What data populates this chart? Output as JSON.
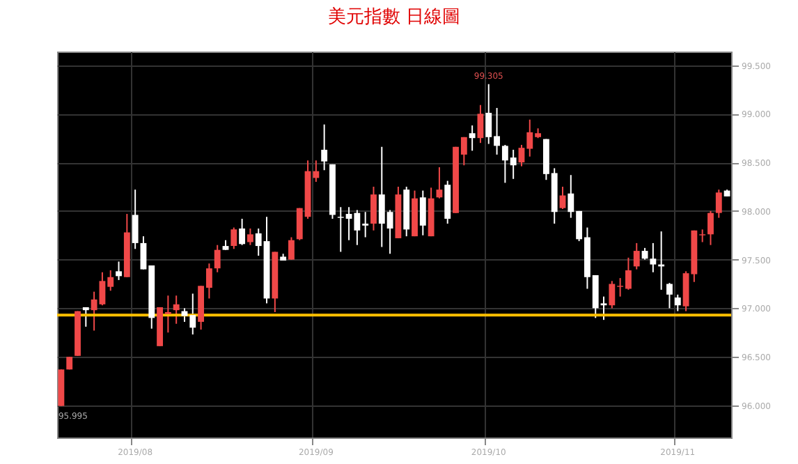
{
  "chart_data": {
    "type": "candlestick",
    "title": "美元指數 日線圖",
    "categories": [
      null,
      null,
      null,
      null,
      null,
      null,
      null,
      null,
      null,
      "2019/08",
      null,
      null,
      null,
      null,
      null,
      null,
      null,
      null,
      null,
      null,
      null,
      null,
      null,
      null,
      null,
      null,
      null,
      null,
      null,
      null,
      null,
      "2019/09",
      null,
      null,
      null,
      null,
      null,
      null,
      null,
      null,
      null,
      null,
      null,
      null,
      null,
      null,
      null,
      null,
      null,
      null,
      null,
      null,
      "2019/10",
      null,
      null,
      null,
      null,
      null,
      null,
      null,
      null,
      null,
      null,
      null,
      null,
      null,
      null,
      null,
      null,
      null,
      null,
      null,
      null,
      null,
      null,
      "2019/11",
      null,
      null,
      null,
      null,
      null,
      null
    ],
    "ohlc": [
      [
        95.995,
        96.37,
        95.995,
        96.37
      ],
      [
        96.37,
        96.5,
        96.37,
        96.5
      ],
      [
        96.51,
        96.97,
        96.51,
        96.97
      ],
      [
        97.01,
        97.01,
        96.81,
        96.98
      ],
      [
        96.98,
        97.17,
        96.77,
        97.09
      ],
      [
        97.04,
        97.37,
        97.03,
        97.28
      ],
      [
        97.22,
        97.39,
        97.18,
        97.32
      ],
      [
        97.38,
        97.48,
        97.29,
        97.33
      ],
      [
        97.32,
        97.97,
        97.32,
        97.78
      ],
      [
        97.96,
        98.22,
        97.61,
        97.67
      ],
      [
        97.67,
        97.74,
        97.4,
        97.4
      ],
      [
        97.44,
        97.44,
        96.79,
        96.9
      ],
      [
        96.61,
        97.01,
        96.61,
        97.01
      ],
      [
        96.94,
        97.13,
        96.75,
        96.96
      ],
      [
        96.98,
        97.13,
        96.84,
        97.04
      ],
      [
        96.97,
        97.0,
        96.86,
        96.92
      ],
      [
        96.93,
        97.15,
        96.73,
        96.8
      ],
      [
        96.86,
        97.23,
        96.78,
        97.23
      ],
      [
        97.21,
        97.46,
        97.1,
        97.41
      ],
      [
        97.41,
        97.65,
        97.37,
        97.6
      ],
      [
        97.64,
        97.7,
        97.6,
        97.6
      ],
      [
        97.64,
        97.83,
        97.61,
        97.81
      ],
      [
        97.82,
        97.92,
        97.65,
        97.66
      ],
      [
        97.68,
        97.82,
        97.65,
        97.76
      ],
      [
        97.77,
        97.82,
        97.54,
        97.64
      ],
      [
        97.69,
        97.94,
        97.05,
        97.1
      ],
      [
        97.1,
        97.58,
        96.96,
        97.58
      ],
      [
        97.53,
        97.56,
        97.49,
        97.49
      ],
      [
        97.5,
        97.73,
        97.5,
        97.7
      ],
      [
        97.71,
        98.03,
        97.7,
        98.03
      ],
      [
        97.94,
        98.52,
        97.92,
        98.41
      ],
      [
        98.34,
        98.52,
        98.3,
        98.41
      ],
      [
        98.63,
        98.89,
        98.42,
        98.51
      ],
      [
        98.48,
        98.48,
        97.92,
        97.96
      ],
      [
        97.94,
        98.04,
        97.58,
        97.93
      ],
      [
        97.97,
        98.04,
        97.7,
        97.92
      ],
      [
        97.98,
        98.01,
        97.65,
        97.8
      ],
      [
        97.87,
        97.99,
        97.73,
        97.85
      ],
      [
        97.87,
        98.25,
        97.8,
        98.17
      ],
      [
        98.17,
        98.66,
        97.63,
        97.87
      ],
      [
        97.99,
        98.01,
        97.56,
        97.82
      ],
      [
        97.72,
        98.25,
        97.72,
        98.17
      ],
      [
        98.22,
        98.25,
        97.74,
        97.81
      ],
      [
        97.74,
        98.21,
        97.74,
        98.13
      ],
      [
        98.14,
        98.21,
        97.75,
        97.85
      ],
      [
        97.74,
        98.24,
        97.74,
        98.13
      ],
      [
        98.14,
        98.45,
        98.13,
        98.22
      ],
      [
        98.27,
        98.31,
        97.87,
        97.92
      ],
      [
        97.98,
        98.66,
        97.98,
        98.66
      ],
      [
        98.58,
        98.76,
        98.47,
        98.76
      ],
      [
        98.8,
        98.88,
        98.62,
        98.75
      ],
      [
        98.75,
        99.09,
        98.7,
        99.0
      ],
      [
        99.01,
        99.305,
        98.69,
        98.76
      ],
      [
        98.77,
        99.06,
        98.58,
        98.67
      ],
      [
        98.67,
        98.68,
        98.29,
        98.52
      ],
      [
        98.55,
        98.63,
        98.33,
        98.47
      ],
      [
        98.5,
        98.68,
        98.46,
        98.65
      ],
      [
        98.64,
        98.94,
        98.56,
        98.81
      ],
      [
        98.76,
        98.85,
        98.75,
        98.8
      ],
      [
        98.74,
        98.74,
        98.32,
        98.38
      ],
      [
        98.39,
        98.44,
        97.87,
        97.99
      ],
      [
        98.03,
        98.25,
        98.02,
        98.16
      ],
      [
        98.18,
        98.37,
        97.93,
        97.99
      ],
      [
        98.0,
        98.0,
        97.69,
        97.71
      ],
      [
        97.73,
        97.83,
        97.2,
        97.32
      ],
      [
        97.34,
        97.34,
        96.9,
        97.0
      ],
      [
        97.05,
        97.12,
        96.88,
        97.03
      ],
      [
        97.03,
        97.28,
        97.0,
        97.25
      ],
      [
        97.22,
        97.31,
        97.12,
        97.23
      ],
      [
        97.2,
        97.52,
        97.19,
        97.39
      ],
      [
        97.43,
        97.67,
        97.4,
        97.59
      ],
      [
        97.59,
        97.62,
        97.5,
        97.51
      ],
      [
        97.51,
        97.67,
        97.37,
        97.45
      ],
      [
        97.45,
        97.79,
        97.19,
        97.43
      ],
      [
        97.25,
        97.26,
        97.0,
        97.14
      ],
      [
        97.11,
        97.14,
        96.97,
        97.03
      ],
      [
        97.02,
        97.38,
        96.97,
        97.36
      ],
      [
        97.35,
        97.8,
        97.27,
        97.8
      ],
      [
        97.75,
        97.81,
        97.68,
        97.76
      ],
      [
        97.76,
        98.0,
        97.65,
        97.98
      ],
      [
        97.98,
        98.22,
        97.93,
        98.19
      ],
      [
        98.21,
        98.22,
        98.15,
        98.15
      ]
    ],
    "colors": [
      "#f04848",
      "#f04848",
      "#f04848",
      "#ffffff",
      "#f04848",
      "#f04848",
      "#f04848",
      "#ffffff",
      "#f04848",
      "#ffffff",
      "#ffffff",
      "#ffffff",
      "#f04848",
      "#f04848",
      "#f04848",
      "#ffffff",
      "#ffffff",
      "#f04848",
      "#f04848",
      "#f04848",
      "#ffffff",
      "#f04848",
      "#ffffff",
      "#f04848",
      "#ffffff",
      "#ffffff",
      "#f04848",
      "#ffffff",
      "#f04848",
      "#f04848",
      "#f04848",
      "#f04848",
      "#ffffff",
      "#ffffff",
      "#ffffff",
      "#ffffff",
      "#ffffff",
      "#ffffff",
      "#f04848",
      "#ffffff",
      "#ffffff",
      "#f04848",
      "#ffffff",
      "#f04848",
      "#ffffff",
      "#f04848",
      "#f04848",
      "#ffffff",
      "#f04848",
      "#f04848",
      "#ffffff",
      "#f04848",
      "#ffffff",
      "#ffffff",
      "#ffffff",
      "#ffffff",
      "#f04848",
      "#f04848",
      "#f04848",
      "#ffffff",
      "#ffffff",
      "#f04848",
      "#ffffff",
      "#ffffff",
      "#ffffff",
      "#ffffff",
      "#ffffff",
      "#f04848",
      "#f04848",
      "#f04848",
      "#f04848",
      "#ffffff",
      "#ffffff",
      "#ffffff",
      "#ffffff",
      "#ffffff",
      "#f04848",
      "#f04848",
      "#f04848",
      "#f04848",
      "#f04848",
      "#ffffff"
    ],
    "ylim": [
      95.67,
      99.64
    ],
    "yticks": [
      {
        "value": 96.0,
        "label": "96.000"
      },
      {
        "value": 96.5,
        "label": "96.500"
      },
      {
        "value": 97.0,
        "label": "97.000"
      },
      {
        "value": 97.5,
        "label": "97.500"
      },
      {
        "value": 98.0,
        "label": "98.000"
      },
      {
        "value": 98.5,
        "label": "98.500"
      },
      {
        "value": 99.0,
        "label": "99.000"
      },
      {
        "value": 99.5,
        "label": "99.500"
      }
    ],
    "grid": true,
    "ref_lines": [
      {
        "axis": "y",
        "value": 96.93,
        "label": null,
        "color": "#ffc000"
      }
    ],
    "annotations": [
      "99.305",
      "95.995"
    ]
  }
}
